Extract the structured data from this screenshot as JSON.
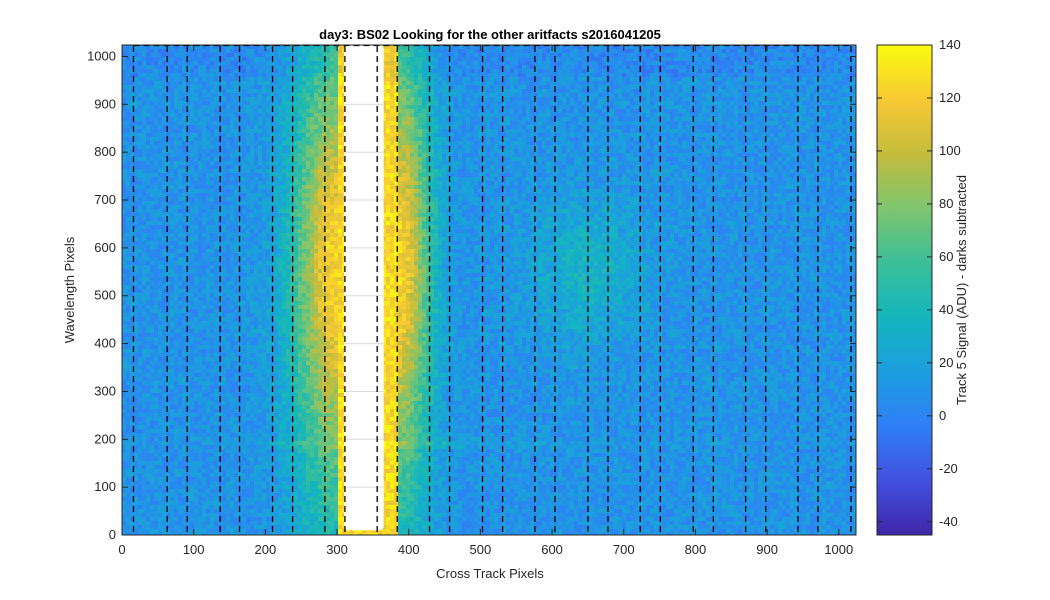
{
  "chart_data": {
    "type": "heatmap",
    "title": "day3: BS02  Looking for the other aritfacts  s2016041205",
    "xlabel": "Cross Track Pixels",
    "ylabel": "Wavelength Pixels",
    "colorbar_label": "Track 5 Signal (ADU) - darks subtracted",
    "xlim": [
      0,
      1024
    ],
    "ylim": [
      0,
      1024
    ],
    "clim": [
      -45,
      140
    ],
    "x_ticks": [
      0,
      100,
      200,
      300,
      400,
      500,
      600,
      700,
      800,
      900,
      1000
    ],
    "y_ticks": [
      0,
      100,
      200,
      300,
      400,
      500,
      600,
      700,
      800,
      900,
      1000
    ],
    "colorbar_ticks": [
      -40,
      -20,
      0,
      20,
      40,
      60,
      80,
      100,
      120,
      140
    ],
    "colormap": "parula",
    "colormap_stops": [
      "#3e26a8",
      "#4250e0",
      "#2f7ff6",
      "#1c9edf",
      "#13b6bd",
      "#3bbf98",
      "#7ec56e",
      "#c5bc3c",
      "#f8c933",
      "#f9fb0e"
    ],
    "background_level": 10,
    "gridlines_at_y": [
      100,
      200,
      300,
      400,
      500,
      600,
      700,
      800,
      900
    ],
    "saturated_region": {
      "x_range": [
        310,
        365
      ],
      "y_range": [
        10,
        1024
      ],
      "color": "#ffffff"
    },
    "bright_band_profile": {
      "peak_x_left": 300,
      "peak_x_right": 385,
      "peak_value": 125
    },
    "dashed_lines_x": [
      16,
      63,
      91,
      137,
      164,
      210,
      238,
      283,
      311,
      356,
      384,
      429,
      457,
      503,
      531,
      576,
      604,
      650,
      678,
      723,
      751,
      797,
      825,
      870,
      898,
      943,
      971,
      1017
    ]
  }
}
